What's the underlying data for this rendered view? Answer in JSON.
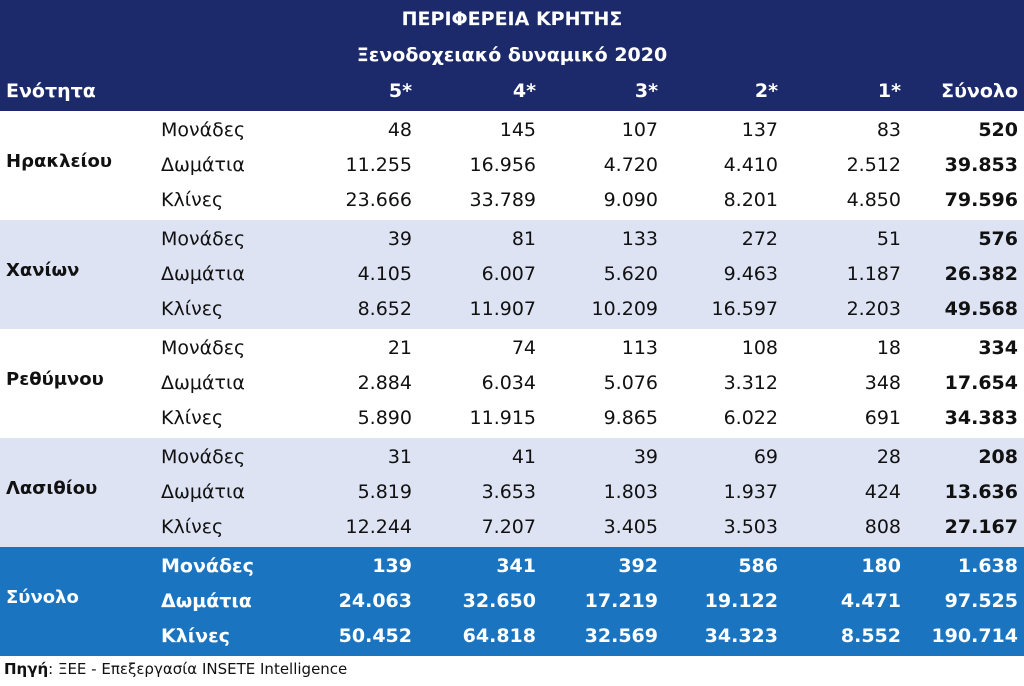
{
  "title": "ΠΕΡΙΦΕΡΕΙΑ ΚΡΗΤΗΣ",
  "subtitle": "Ξενοδοχειακό δυναμικό 2020",
  "columns": {
    "label": "Ενότητα",
    "c5": "5*",
    "c4": "4*",
    "c3": "3*",
    "c2": "2*",
    "c1": "1*",
    "total": "Σύνολο"
  },
  "row_labels": [
    "Μονάδες",
    "Δωμάτια",
    "Κλίνες"
  ],
  "groups": [
    {
      "name": "Ηρακλείου",
      "rows": [
        [
          "48",
          "145",
          "107",
          "137",
          "83",
          "520"
        ],
        [
          "11.255",
          "16.956",
          "4.720",
          "4.410",
          "2.512",
          "39.853"
        ],
        [
          "23.666",
          "33.789",
          "9.090",
          "8.201",
          "4.850",
          "79.596"
        ]
      ]
    },
    {
      "name": "Χανίων",
      "rows": [
        [
          "39",
          "81",
          "133",
          "272",
          "51",
          "576"
        ],
        [
          "4.105",
          "6.007",
          "5.620",
          "9.463",
          "1.187",
          "26.382"
        ],
        [
          "8.652",
          "11.907",
          "10.209",
          "16.597",
          "2.203",
          "49.568"
        ]
      ]
    },
    {
      "name": "Ρεθύμνου",
      "rows": [
        [
          "21",
          "74",
          "113",
          "108",
          "18",
          "334"
        ],
        [
          "2.884",
          "6.034",
          "5.076",
          "3.312",
          "348",
          "17.654"
        ],
        [
          "5.890",
          "11.915",
          "9.865",
          "6.022",
          "691",
          "34.383"
        ]
      ]
    },
    {
      "name": "Λασιθίου",
      "rows": [
        [
          "31",
          "41",
          "39",
          "69",
          "28",
          "208"
        ],
        [
          "5.819",
          "3.653",
          "1.803",
          "1.937",
          "424",
          "13.636"
        ],
        [
          "12.244",
          "7.207",
          "3.405",
          "3.503",
          "808",
          "27.167"
        ]
      ]
    },
    {
      "name": "Σύνολο",
      "rows": [
        [
          "139",
          "341",
          "392",
          "586",
          "180",
          "1.638"
        ],
        [
          "24.063",
          "32.650",
          "17.219",
          "19.122",
          "4.471",
          "97.525"
        ],
        [
          "50.452",
          "64.818",
          "32.569",
          "34.323",
          "8.552",
          "190.714"
        ]
      ]
    }
  ],
  "source": {
    "label": "Πηγή",
    "text": ": ΞΕΕ - Επεξεργασία INSETE Intelligence"
  },
  "colors": {
    "header_bg": "#1c2a6b",
    "alt_row_bg": "#dde3f3",
    "total_bg": "#1a74c0"
  }
}
